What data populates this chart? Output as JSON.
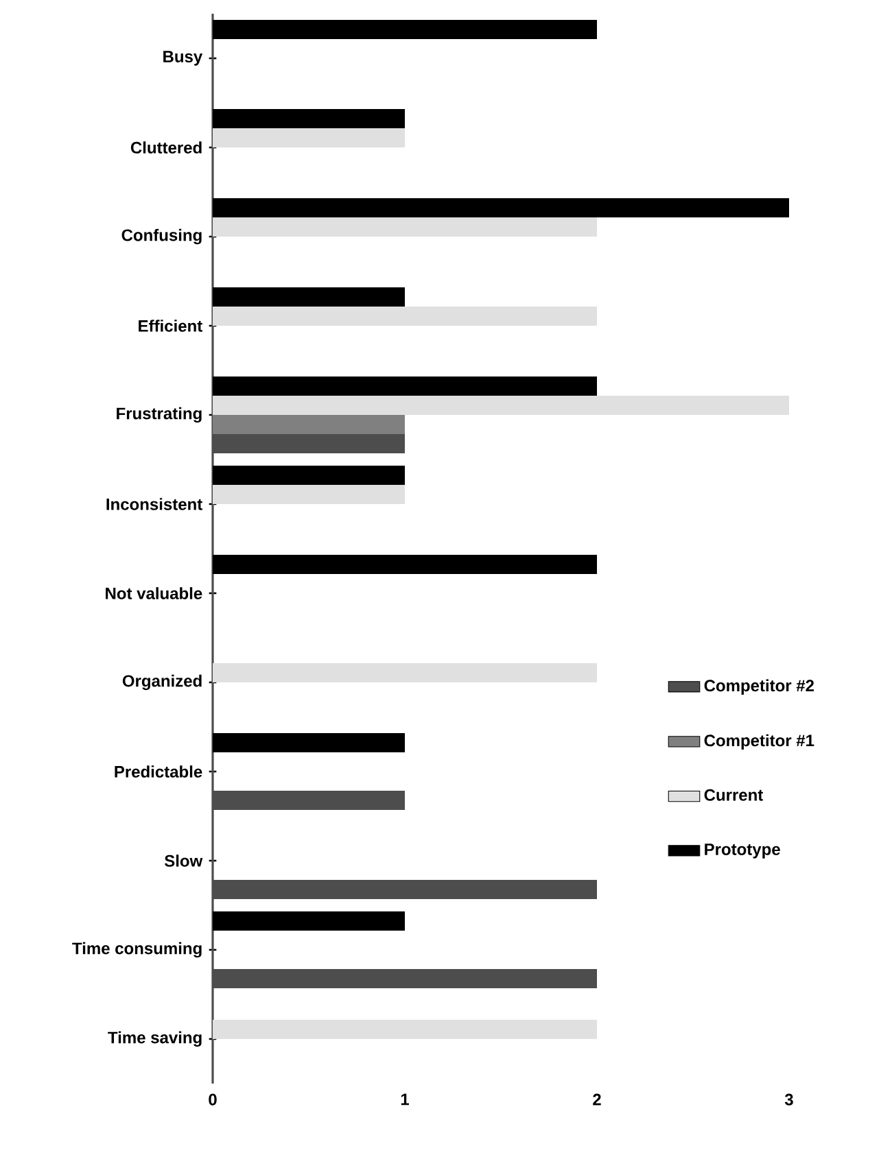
{
  "chart_data": {
    "type": "bar",
    "orientation": "horizontal",
    "categories": [
      "Busy",
      "Cluttered",
      "Confusing",
      "Efficient",
      "Frustrating",
      "Inconsistent",
      "Not valuable",
      "Organized",
      "Predictable",
      "Slow",
      "Time consuming",
      "Time saving"
    ],
    "series": [
      {
        "name": "Competitor #2",
        "color": "#4d4d4d",
        "values": [
          0,
          0,
          0,
          0,
          1,
          0,
          0,
          0,
          1,
          2,
          2,
          0
        ]
      },
      {
        "name": "Competitor #1",
        "color": "#808080",
        "values": [
          0,
          0,
          0,
          0,
          1,
          0,
          0,
          0,
          0,
          0,
          0,
          0
        ]
      },
      {
        "name": "Current",
        "color": "#e0e0e0",
        "values": [
          0,
          1,
          2,
          2,
          3,
          1,
          0,
          2,
          0,
          0,
          0,
          2
        ]
      },
      {
        "name": "Prototype",
        "color": "#000000",
        "values": [
          2,
          1,
          3,
          1,
          2,
          1,
          2,
          0,
          1,
          0,
          1,
          0
        ]
      }
    ],
    "xlim": [
      0,
      3
    ],
    "xticks": [
      0,
      1,
      2,
      3
    ],
    "grid": false,
    "legend": "right"
  }
}
